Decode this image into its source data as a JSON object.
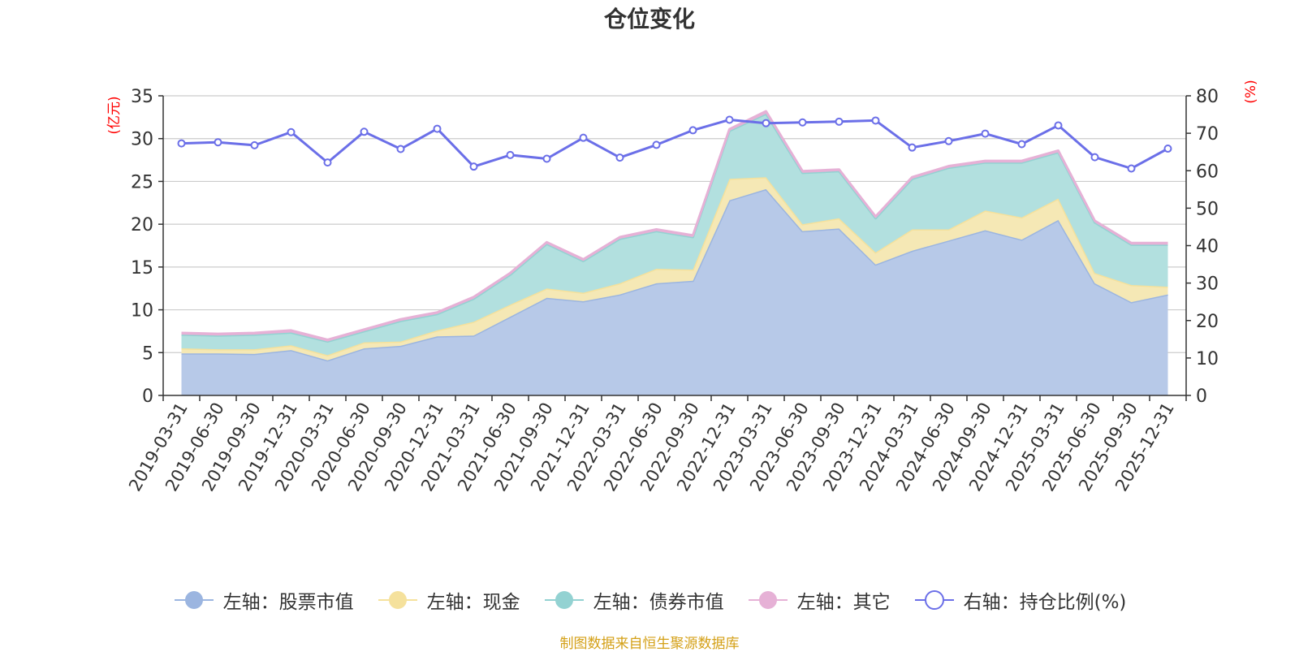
{
  "chart_data": {
    "type": "area",
    "title": "仓位变化",
    "left_axis_unit": "(亿元)",
    "right_axis_unit": "(%)",
    "left_ylim": [
      0,
      35
    ],
    "left_ticks": [
      0,
      5,
      10,
      15,
      20,
      25,
      30,
      35
    ],
    "right_ylim": [
      0,
      80
    ],
    "right_ticks": [
      0,
      10,
      20,
      30,
      40,
      50,
      60,
      70,
      80
    ],
    "categories": [
      "2019-03-31",
      "2019-06-30",
      "2019-09-30",
      "2019-12-31",
      "2020-03-31",
      "2020-06-30",
      "2020-09-30",
      "2020-12-31",
      "2021-03-31",
      "2021-06-30",
      "2021-09-30",
      "2021-12-31",
      "2022-03-31",
      "2022-06-30",
      "2022-09-30",
      "2022-12-31",
      "2023-03-31",
      "2023-06-30",
      "2023-09-30",
      "2023-12-31",
      "2024-03-31",
      "2024-06-30",
      "2024-09-30",
      "2024-12-31",
      "2025-03-31",
      "2025-06-30",
      "2025-09-30",
      "2025-12-31"
    ],
    "series": [
      {
        "name": "左轴：股票市值",
        "axis": "left",
        "stack": true,
        "color": "#9bb5e0",
        "fill": "#b7c9e8",
        "values": [
          4.9,
          4.9,
          4.85,
          5.3,
          4.1,
          5.5,
          5.8,
          6.9,
          7.0,
          9.2,
          11.4,
          11.0,
          11.8,
          13.1,
          13.4,
          22.8,
          24.1,
          19.2,
          19.5,
          15.3,
          16.9,
          18.1,
          19.3,
          18.2,
          20.5,
          13.1,
          10.9,
          11.8
        ]
      },
      {
        "name": "左轴：现金",
        "axis": "left",
        "stack": true,
        "color": "#f5e19c",
        "fill": "#f5e8b5",
        "values": [
          0.6,
          0.5,
          0.55,
          0.55,
          0.6,
          0.7,
          0.5,
          0.7,
          1.6,
          1.4,
          1.1,
          1.0,
          1.3,
          1.7,
          1.3,
          2.5,
          1.4,
          0.8,
          1.2,
          1.4,
          2.5,
          1.3,
          2.3,
          2.6,
          2.5,
          1.2,
          2.0,
          0.9
        ]
      },
      {
        "name": "左轴：债券市值",
        "axis": "left",
        "stack": true,
        "color": "#93d2d2",
        "fill": "#b2e0df",
        "values": [
          1.6,
          1.6,
          1.7,
          1.5,
          1.6,
          1.3,
          2.4,
          1.9,
          2.7,
          3.5,
          5.2,
          3.7,
          5.2,
          4.4,
          3.8,
          5.6,
          7.4,
          6.0,
          5.5,
          4.0,
          5.9,
          7.2,
          5.6,
          6.4,
          5.4,
          5.9,
          4.7,
          4.9
        ]
      },
      {
        "name": "左轴：其它",
        "axis": "left",
        "stack": true,
        "color": "#e6b1d6",
        "fill": "#e6b1d6",
        "values": [
          0.2,
          0.2,
          0.2,
          0.25,
          0.2,
          0.2,
          0.2,
          0.2,
          0.2,
          0.2,
          0.2,
          0.2,
          0.2,
          0.2,
          0.2,
          0.2,
          0.3,
          0.2,
          0.2,
          0.2,
          0.2,
          0.2,
          0.2,
          0.2,
          0.2,
          0.2,
          0.2,
          0.2
        ]
      },
      {
        "name": "右轴：持仓比例(%)",
        "axis": "right",
        "stack": false,
        "color": "#6b6fe8",
        "fill": "none",
        "values": [
          67.3,
          67.6,
          66.8,
          70.3,
          62.2,
          70.4,
          65.8,
          71.2,
          61.1,
          64.2,
          63.2,
          68.8,
          63.5,
          66.9,
          70.8,
          73.6,
          72.7,
          72.9,
          73.1,
          73.4,
          66.2,
          67.9,
          69.9,
          67.1,
          72.1,
          63.6,
          60.6,
          65.9
        ]
      }
    ]
  },
  "source_note": "制图数据来自恒生聚源数据库"
}
